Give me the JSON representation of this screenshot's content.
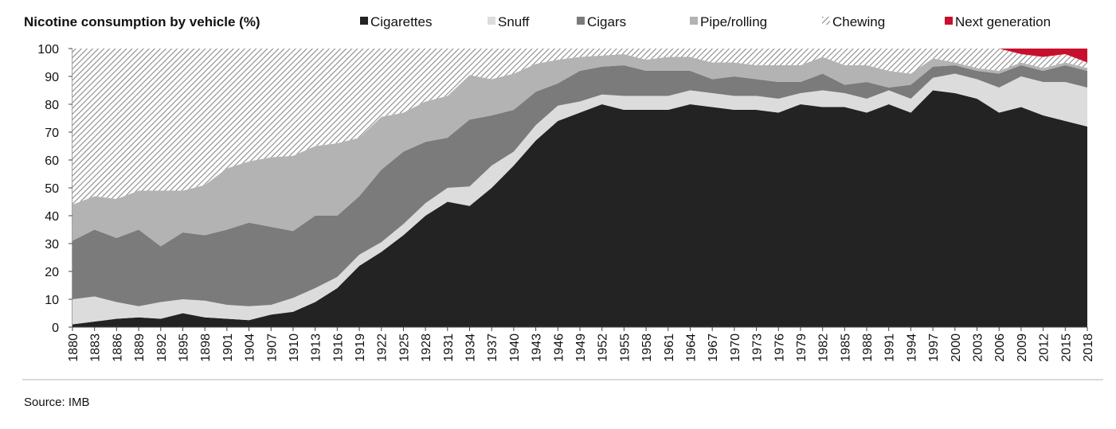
{
  "chart_data": {
    "type": "area",
    "stacked": true,
    "title": "Nicotine consumption by vehicle (%)",
    "source": "Source: IMB",
    "ylim": [
      0,
      100
    ],
    "yticks": [
      0,
      10,
      20,
      30,
      40,
      50,
      60,
      70,
      80,
      90,
      100
    ],
    "x": [
      1880,
      1883,
      1886,
      1889,
      1892,
      1895,
      1898,
      1901,
      1904,
      1907,
      1910,
      1913,
      1916,
      1919,
      1922,
      1925,
      1928,
      1931,
      1934,
      1937,
      1940,
      1943,
      1946,
      1949,
      1952,
      1955,
      1958,
      1961,
      1964,
      1967,
      1970,
      1973,
      1976,
      1979,
      1982,
      1985,
      1988,
      1991,
      1994,
      1997,
      2000,
      2003,
      2006,
      2009,
      2012,
      2015,
      2018
    ],
    "xtick_labels": [
      "1880",
      "1883",
      "1886",
      "1889",
      "1892",
      "1895",
      "1898",
      "1901",
      "1904",
      "1907",
      "1910",
      "1913",
      "1916",
      "1919",
      "1922",
      "1925",
      "1928",
      "1931",
      "1934",
      "1937",
      "1940",
      "1943",
      "1946",
      "1949",
      "1952",
      "1955",
      "1958",
      "1961",
      "1964",
      "1967",
      "1970",
      "1973",
      "1976",
      "1979",
      "1982",
      "1985",
      "1988",
      "1991",
      "1994",
      "1997",
      "2000",
      "2003",
      "2006",
      "2009",
      "2012",
      "2015",
      "2018"
    ],
    "series": [
      {
        "name": "Cigarettes",
        "color": "#232323",
        "pattern": "solid",
        "values": [
          1,
          2,
          3,
          3.5,
          3,
          5,
          3.5,
          3,
          2.5,
          4.5,
          5.5,
          9,
          14,
          22,
          27,
          33,
          40,
          45,
          43.5,
          50,
          58,
          67,
          74,
          77,
          80,
          78,
          78,
          78,
          80,
          79,
          78,
          78,
          77,
          80,
          79,
          79,
          77,
          80,
          77,
          85,
          84,
          82,
          77,
          79,
          76,
          74,
          72
        ]
      },
      {
        "name": "Snuff",
        "color": "#dcdcdc",
        "pattern": "solid",
        "values": [
          9,
          9,
          6,
          4,
          6,
          5,
          6,
          5,
          5,
          3.5,
          5,
          5,
          4,
          4,
          3.5,
          4,
          4.5,
          5,
          7,
          8,
          5,
          5.5,
          5.5,
          4,
          3.5,
          5,
          5,
          5,
          5,
          5,
          5,
          5,
          5,
          4,
          6,
          5,
          5,
          5,
          5,
          4.5,
          7,
          7,
          9,
          11,
          12,
          14,
          14
        ]
      },
      {
        "name": "Cigars",
        "color": "#7b7b7b",
        "pattern": "solid",
        "values": [
          21,
          24,
          23,
          27.5,
          20,
          24,
          23.5,
          27,
          30,
          28,
          24,
          26,
          22,
          21,
          26,
          26,
          22,
          18,
          24,
          18,
          15,
          12,
          8,
          11,
          10,
          11,
          9,
          9,
          7,
          5,
          7,
          6,
          6,
          4,
          6,
          3,
          6,
          1,
          5,
          4,
          3,
          3,
          5,
          4,
          4,
          6,
          6
        ]
      },
      {
        "name": "Pipe/rolling",
        "color": "#b3b3b3",
        "pattern": "solid",
        "values": [
          13,
          12,
          14,
          14,
          20,
          15,
          18,
          22,
          22,
          25,
          27,
          25,
          26,
          21,
          19,
          14,
          14.5,
          15,
          16,
          13,
          13,
          10,
          8.5,
          5,
          4,
          4,
          4,
          5,
          5,
          6,
          5,
          5,
          6,
          6,
          6,
          7,
          6,
          6,
          4,
          3,
          1,
          1,
          1,
          1,
          1,
          1,
          1
        ]
      },
      {
        "name": "Chewing",
        "color": "#9a9a9a",
        "pattern": "hatch",
        "values": [
          56,
          53,
          54,
          51,
          51,
          51,
          49,
          43,
          40.5,
          39,
          38.5,
          35,
          34,
          32,
          24.5,
          23,
          19,
          17,
          9.5,
          11,
          9,
          5.5,
          4,
          3,
          2.5,
          2,
          4,
          3,
          3,
          5,
          5,
          6,
          6,
          6,
          3,
          6,
          6,
          8,
          9,
          3.5,
          5,
          7,
          8,
          3,
          4,
          3,
          2
        ]
      },
      {
        "name": "Next generation",
        "color": "#c8102e",
        "pattern": "solid",
        "values": [
          0,
          0,
          0,
          0,
          0,
          0,
          0,
          0,
          0,
          0,
          0,
          0,
          0,
          0,
          0,
          0,
          0,
          0,
          0,
          0,
          0,
          0,
          0,
          0,
          0,
          0,
          0,
          0,
          0,
          0,
          0,
          0,
          0,
          0,
          0,
          0,
          0,
          0,
          0,
          0,
          0,
          0,
          0,
          2,
          3,
          2,
          5
        ]
      }
    ],
    "legend_position": "top"
  }
}
